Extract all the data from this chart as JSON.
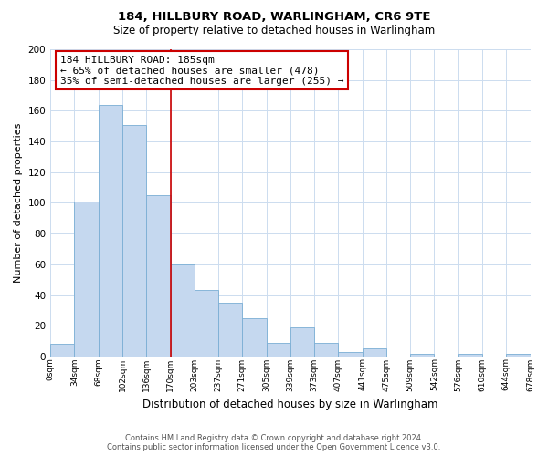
{
  "title": "184, HILLBURY ROAD, WARLINGHAM, CR6 9TE",
  "subtitle": "Size of property relative to detached houses in Warlingham",
  "xlabel": "Distribution of detached houses by size in Warlingham",
  "ylabel": "Number of detached properties",
  "bar_color": "#c5d8ef",
  "bar_edge_color": "#7aaed4",
  "bin_labels": [
    "0sqm",
    "34sqm",
    "68sqm",
    "102sqm",
    "136sqm",
    "170sqm",
    "203sqm",
    "237sqm",
    "271sqm",
    "305sqm",
    "339sqm",
    "373sqm",
    "407sqm",
    "441sqm",
    "475sqm",
    "509sqm",
    "542sqm",
    "576sqm",
    "610sqm",
    "644sqm",
    "678sqm"
  ],
  "bar_heights": [
    8,
    101,
    164,
    151,
    105,
    60,
    43,
    35,
    25,
    9,
    19,
    9,
    3,
    5,
    0,
    2,
    0,
    2,
    0,
    2
  ],
  "ylim": [
    0,
    200
  ],
  "yticks": [
    0,
    20,
    40,
    60,
    80,
    100,
    120,
    140,
    160,
    180,
    200
  ],
  "vline_x": 5.0,
  "vline_color": "#cc0000",
  "annotation_title": "184 HILLBURY ROAD: 185sqm",
  "annotation_line1": "← 65% of detached houses are smaller (478)",
  "annotation_line2": "35% of semi-detached houses are larger (255) →",
  "annotation_box_color": "#ffffff",
  "annotation_box_edge": "#cc0000",
  "footer_line1": "Contains HM Land Registry data © Crown copyright and database right 2024.",
  "footer_line2": "Contains public sector information licensed under the Open Government Licence v3.0.",
  "background_color": "#ffffff",
  "grid_color": "#ccdcef"
}
